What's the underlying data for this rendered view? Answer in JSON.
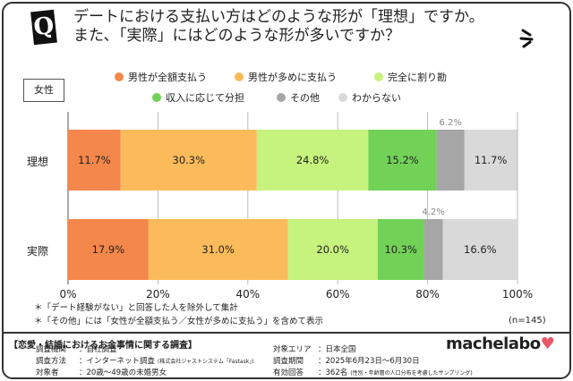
{
  "title": {
    "line1": "デートにおける支払い方はどのような形が「理想」ですか。",
    "line2": "また､「実際」にはどのような形が多いですか？",
    "badge": "Q"
  },
  "sample_label": "女性",
  "chart_data": {
    "type": "bar",
    "orientation": "horizontal-stacked-100",
    "categories": [
      "理想",
      "実際"
    ],
    "series": [
      {
        "name": "男性が全額支払う",
        "color": "#f4874b",
        "values": [
          11.7,
          17.9
        ]
      },
      {
        "name": "男性が多めに支払う",
        "color": "#fbbb5a",
        "values": [
          30.3,
          31.0
        ]
      },
      {
        "name": "完全に割り勘",
        "color": "#c6f27e",
        "values": [
          24.8,
          20.0
        ]
      },
      {
        "name": "収入に応じて分担",
        "color": "#72d157",
        "values": [
          15.2,
          10.3
        ]
      },
      {
        "name": "その他",
        "color": "#a6a6a6",
        "values": [
          6.2,
          4.2
        ]
      },
      {
        "name": "わからない",
        "color": "#d9d9d9",
        "values": [
          11.7,
          16.6
        ]
      }
    ],
    "xlim": [
      0,
      100
    ],
    "xticks": [
      "0%",
      "20%",
      "40%",
      "60%",
      "80%",
      "100%"
    ],
    "grid": true,
    "legend": "top"
  },
  "notes": [
    "＊「デート経験がない」と回答した人を除外して集計",
    "＊「その他」には「女性が全額支払う／女性が多めに支払う」を含めて表示"
  ],
  "n": "(n=145)",
  "footer": {
    "title": "【恋愛・結婚におけるお金事情に関する調査】",
    "rows": [
      {
        "k": "調査機関",
        "v": "：自社調査"
      },
      {
        "k": "調査方法",
        "v": "：インターネット調査",
        "s": "(株式会社ジャストシステム「Fastask」)"
      },
      {
        "k": "対象者",
        "v": "：20歳〜49歳の未婚男女"
      },
      {
        "k": "対象エリア",
        "v": "：日本全国"
      },
      {
        "k": "調査期間",
        "v": "：2025年6月23日〜6月30日"
      },
      {
        "k": "有効回答",
        "v": "：362名",
        "s": "(性別・年齢層の人口分布を考慮したサンプリング)"
      }
    ],
    "logo": "machelabo"
  }
}
